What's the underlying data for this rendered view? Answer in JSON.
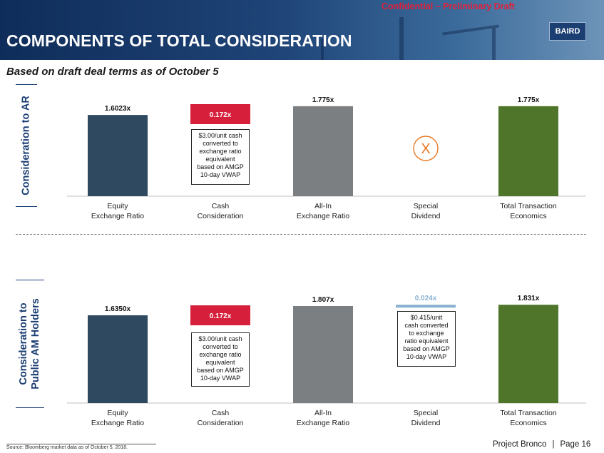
{
  "header": {
    "confidential": "Confidential – Preliminary Draft",
    "title": "COMPONENTS OF TOTAL CONSIDERATION",
    "logo": "BAIRD",
    "subtitle": "Based on draft deal terms as of October 5"
  },
  "colors": {
    "equity": "#2e4960",
    "cash": "#d51f3b",
    "allin": "#7c7f81",
    "special": "#8ab0cf",
    "total": "#4e7529",
    "x_circle": "#e87722",
    "side_label": "#1b3e73"
  },
  "side_labels": {
    "top": "Consideration to AR",
    "bottom": "Consideration to\nPublic AM Holders"
  },
  "chart_data": [
    {
      "type": "bar",
      "title": "Consideration to AR",
      "categories": [
        "Equity\nExchange Ratio",
        "Cash\nConsideration",
        "All-In\nExchange Ratio",
        "Special\nDividend",
        "Total Transaction\nEconomics"
      ],
      "values": [
        1.6023,
        0.172,
        1.775,
        null,
        1.775
      ],
      "value_labels": [
        "1.6023x",
        "0.172x",
        "1.775x",
        "",
        "1.775x"
      ],
      "ylim": [
        0,
        1.9
      ],
      "waterfall": true,
      "special_marker": "X",
      "notes": [
        "$3.00/unit cash\nconverted to\nexchange ratio\nequivalent\nbased on AMGP\n10-day VWAP"
      ],
      "grid": false
    },
    {
      "type": "bar",
      "title": "Consideration to Public AM Holders",
      "categories": [
        "Equity\nExchange Ratio",
        "Cash\nConsideration",
        "All-In\nExchange Ratio",
        "Special\nDividend",
        "Total Transaction\nEconomics"
      ],
      "values": [
        1.635,
        0.172,
        1.807,
        0.024,
        1.831
      ],
      "value_labels": [
        "1.6350x",
        "0.172x",
        "1.807x",
        "0.024x",
        "1.831x"
      ],
      "ylim": [
        0,
        1.9
      ],
      "waterfall": true,
      "notes": [
        "$3.00/unit cash\nconverted to\nexchange ratio\nequivalent\nbased on AMGP\n10-day VWAP",
        "$0.415/unit\ncash converted\nto exchange\nratio equivalent\nbased on AMGP\n10-day VWAP"
      ],
      "grid": false
    }
  ],
  "footer": {
    "source": "Source: Bloomberg market data as of October 5, 2018.",
    "project": "Project Bronco",
    "separator": "|",
    "page": "Page 16"
  }
}
